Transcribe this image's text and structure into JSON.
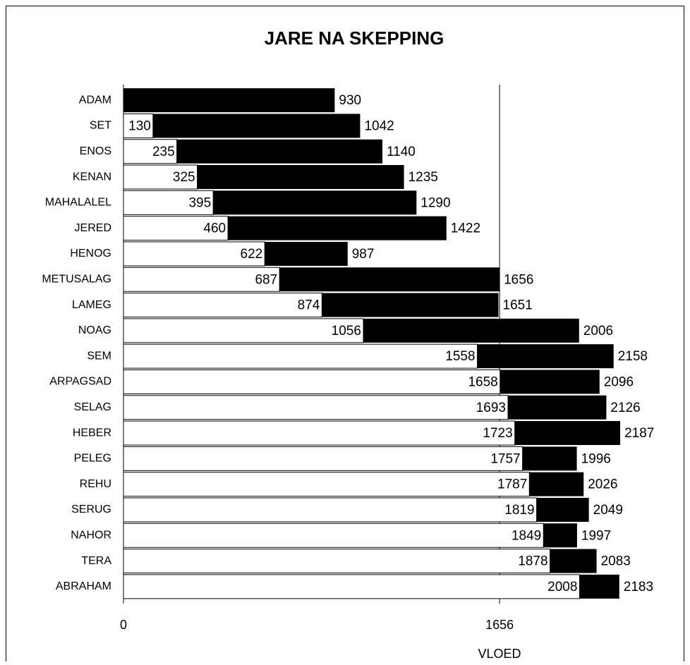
{
  "chart_data": {
    "type": "range_bar",
    "title": "JARE NA SKEPPING",
    "x_label": "VLOED",
    "categories": [
      "ADAM",
      "SET",
      "ENOS",
      "KENAN",
      "MAHALALEL",
      "JERED",
      "HENOG",
      "METUSALAG",
      "LAMEG",
      "NOAG",
      "SEM",
      "ARPAGSAD",
      "SELAG",
      "HEBER",
      "PELEG",
      "REHU",
      "SERUG",
      "NAHOR",
      "TERA",
      "ABRAHAM"
    ],
    "start": [
      0,
      130,
      235,
      325,
      395,
      460,
      622,
      687,
      874,
      1056,
      1558,
      1658,
      1693,
      1723,
      1757,
      1787,
      1819,
      1849,
      1878,
      2008
    ],
    "end": [
      930,
      1042,
      1140,
      1235,
      1290,
      1422,
      987,
      1656,
      1651,
      2006,
      2158,
      2096,
      2126,
      2187,
      1996,
      2026,
      2049,
      1997,
      2083,
      2183
    ],
    "start_color": "#ffffff",
    "end_color": "#000000",
    "xlim": [
      0,
      2485
    ],
    "xticks": [
      0,
      1656
    ],
    "grid": true
  }
}
